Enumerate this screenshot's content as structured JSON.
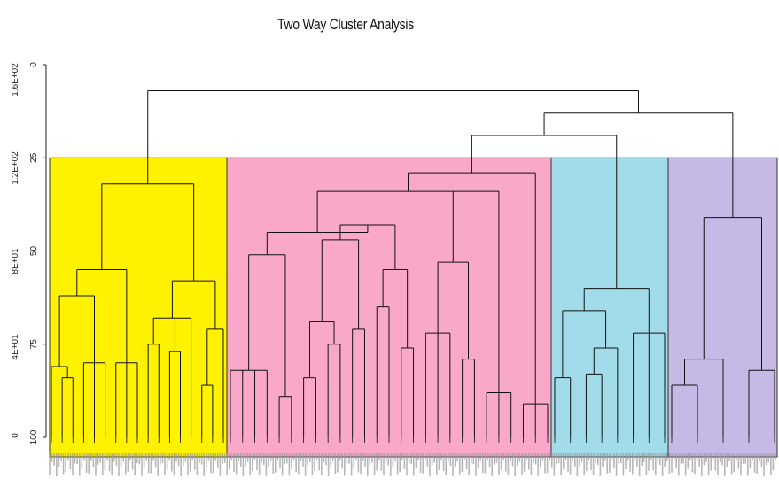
{
  "chart_data": {
    "type": "dendrogram",
    "title": "Two Way Cluster Analysis",
    "left_axis": {
      "ticks": [
        "0",
        "25",
        "50",
        "75",
        "100"
      ],
      "values": [
        0,
        25,
        50,
        75,
        100
      ],
      "orientation": "reversed"
    },
    "left_axis_secondary": {
      "ticks": [
        "1.6E+02",
        "1.2E+02",
        "8E+01",
        "4E+01",
        "0"
      ],
      "values": [
        160,
        120,
        80,
        40,
        0
      ]
    },
    "groups": [
      {
        "color": "#fff200",
        "leaves": 24
      },
      {
        "color": "#f9a8c9",
        "leaves": 50
      },
      {
        "color": "#a2dcea",
        "leaves": 16
      },
      {
        "color": "#c6b9e6",
        "leaves": 16
      }
    ],
    "cut_level": 25,
    "merge_levels": [
      {
        "join": "all",
        "level": 7
      },
      {
        "join": "pink+cyan+lavender",
        "level": 13
      },
      {
        "join": "pink+cyan",
        "level": 19
      },
      {
        "join": "yellow-root",
        "level": 32
      },
      {
        "join": "pink-root",
        "level": 29
      },
      {
        "join": "cyan-root",
        "level": 60
      },
      {
        "join": "lavender-root",
        "level": 41
      }
    ]
  }
}
